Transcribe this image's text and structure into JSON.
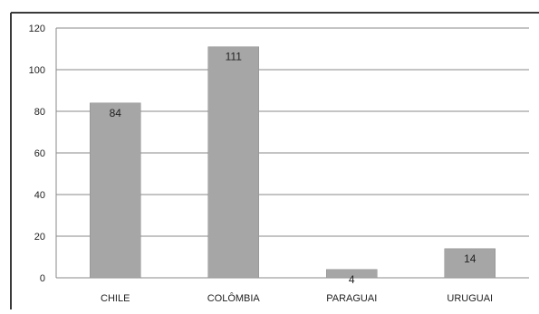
{
  "chart_data": {
    "type": "bar",
    "categories": [
      "CHILE",
      "COLÔMBIA",
      "PARAGUAI",
      "URUGUAI"
    ],
    "series": [
      {
        "values": [
          84,
          111,
          4,
          14
        ]
      }
    ],
    "data_labels": [
      "84",
      "111",
      "4",
      "14"
    ],
    "ylim": [
      0,
      120
    ],
    "yticks": [
      "0",
      "20",
      "40",
      "60",
      "80",
      "100",
      "120"
    ],
    "grid": true,
    "legend": "none",
    "colors": {
      "bar": "#a6a6a6",
      "bar_edge": "#8c8c8c",
      "grid": "#8a8a8a",
      "frame": "#3a3a3a"
    }
  }
}
